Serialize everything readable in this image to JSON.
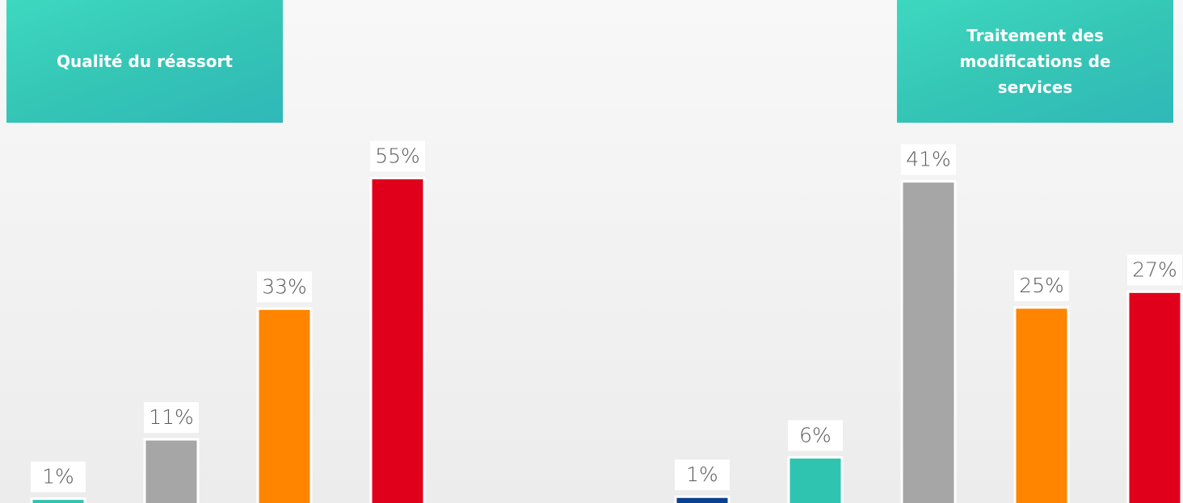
{
  "chart_data": [
    {
      "type": "bar",
      "title": "Qualité du réassort",
      "values": [
        1,
        11,
        33,
        55
      ],
      "value_labels": [
        "1%",
        "11%",
        "33%",
        "55%"
      ],
      "colors": [
        "#2ec4b0",
        "#a6a6a6",
        "#ff8400",
        "#e0001b"
      ],
      "ylim": [
        0,
        85
      ]
    },
    {
      "type": "bar",
      "title": "Traitement des modifications de services",
      "values": [
        1,
        6,
        41,
        25,
        27
      ],
      "value_labels": [
        "1%",
        "6%",
        "41%",
        "25%",
        "27%"
      ],
      "colors": [
        "#0b3f8f",
        "#2ec4b0",
        "#a6a6a6",
        "#ff8400",
        "#e0001b"
      ],
      "ylim": [
        0,
        64
      ]
    }
  ]
}
